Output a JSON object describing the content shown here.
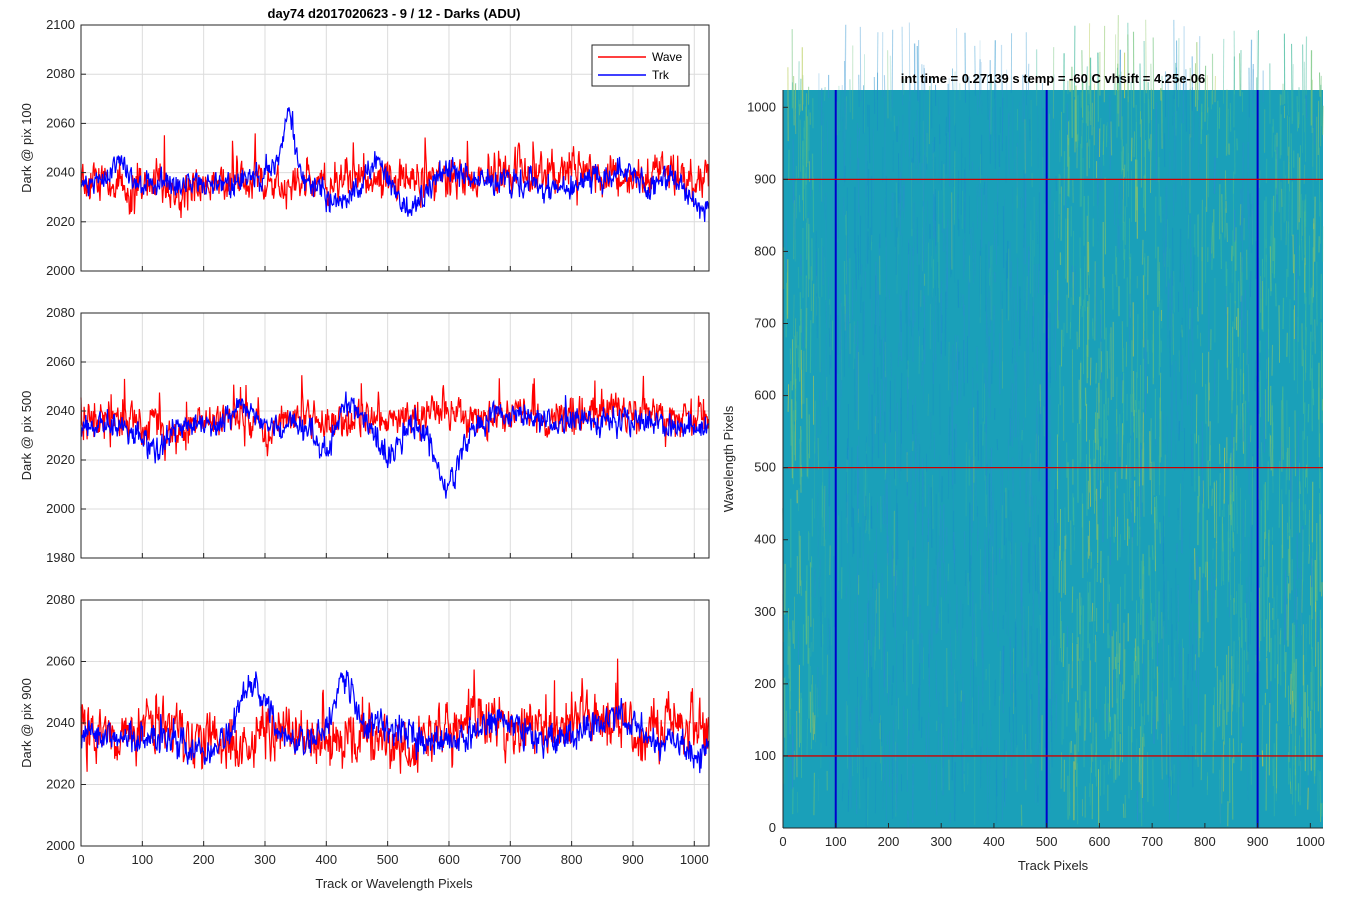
{
  "figure": {
    "xlabel_shared": "Track or Wavelength Pixels"
  },
  "chart_data": [
    {
      "type": "line",
      "title": "day74 d2017020623 - 9 / 12 - Darks (ADU)",
      "ylabel": "Dark @ pix 100",
      "xlabel": "",
      "xlim": [
        0,
        1024
      ],
      "ylim": [
        2000,
        2100
      ],
      "xticks": [
        0,
        100,
        200,
        300,
        400,
        500,
        600,
        700,
        800,
        900,
        1000
      ],
      "yticks": [
        2000,
        2020,
        2040,
        2060,
        2080,
        2100
      ],
      "grid": true,
      "legend": {
        "position": "top-right",
        "entries": [
          "Wave",
          "Trk"
        ]
      },
      "series": [
        {
          "name": "Wave",
          "color": "#ff0000",
          "mean": 2037,
          "noise": 9,
          "spike_rate": 0.05,
          "spike_amp": 28,
          "features": [
            [
              80,
              20,
              -6
            ],
            [
              160,
              30,
              -5
            ],
            [
              330,
              25,
              -4
            ],
            [
              700,
              40,
              4
            ],
            [
              800,
              40,
              5
            ],
            [
              950,
              40,
              3
            ]
          ]
        },
        {
          "name": "Trk",
          "color": "#0000ff",
          "mean": 2036,
          "noise": 6,
          "spike_rate": 0.01,
          "spike_amp": 14,
          "features": [
            [
              60,
              15,
              10
            ],
            [
              340,
              12,
              22
            ],
            [
              320,
              30,
              8
            ],
            [
              420,
              30,
              -8
            ],
            [
              480,
              15,
              8
            ],
            [
              540,
              25,
              -10
            ],
            [
              600,
              30,
              5
            ],
            [
              780,
              40,
              -3
            ],
            [
              880,
              30,
              5
            ],
            [
              1010,
              20,
              -12
            ]
          ]
        }
      ]
    },
    {
      "type": "line",
      "title": "",
      "ylabel": "Dark @ pix 500",
      "xlabel": "",
      "xlim": [
        0,
        1024
      ],
      "ylim": [
        1980,
        2080
      ],
      "xticks": [
        0,
        100,
        200,
        300,
        400,
        500,
        600,
        700,
        800,
        900,
        1000
      ],
      "yticks": [
        1980,
        2000,
        2020,
        2040,
        2060,
        2080
      ],
      "grid": true,
      "series": [
        {
          "name": "Wave",
          "color": "#ff0000",
          "mean": 2036,
          "noise": 8,
          "spike_rate": 0.05,
          "spike_amp": 26,
          "features": [
            [
              150,
              30,
              -5
            ],
            [
              300,
              20,
              -4
            ],
            [
              580,
              20,
              6
            ],
            [
              700,
              40,
              3
            ],
            [
              850,
              50,
              4
            ],
            [
              950,
              40,
              3
            ]
          ]
        },
        {
          "name": "Trk",
          "color": "#0000ff",
          "mean": 2034,
          "noise": 6,
          "spike_rate": 0.01,
          "spike_amp": 12,
          "features": [
            [
              120,
              25,
              -10
            ],
            [
              260,
              20,
              10
            ],
            [
              400,
              20,
              -14
            ],
            [
              430,
              30,
              10
            ],
            [
              500,
              20,
              -12
            ],
            [
              590,
              20,
              -18
            ],
            [
              610,
              25,
              -12
            ],
            [
              700,
              40,
              5
            ],
            [
              800,
              40,
              2
            ],
            [
              900,
              40,
              3
            ]
          ]
        }
      ]
    },
    {
      "type": "line",
      "title": "",
      "ylabel": "Dark @ pix 900",
      "xlabel": "Track or Wavelength Pixels",
      "xlim": [
        0,
        1024
      ],
      "ylim": [
        2000,
        2080
      ],
      "xticks": [
        0,
        100,
        200,
        300,
        400,
        500,
        600,
        700,
        800,
        900,
        1000
      ],
      "yticks": [
        2000,
        2020,
        2040,
        2060,
        2080
      ],
      "grid": true,
      "series": [
        {
          "name": "Wave",
          "color": "#ff0000",
          "mean": 2037,
          "noise": 10,
          "spike_rate": 0.05,
          "spike_amp": 24,
          "features": [
            [
              250,
              40,
              -5
            ],
            [
              400,
              40,
              -4
            ],
            [
              530,
              40,
              -5
            ],
            [
              650,
              40,
              5
            ],
            [
              820,
              60,
              6
            ],
            [
              1000,
              30,
              3
            ]
          ]
        },
        {
          "name": "Trk",
          "color": "#0000ff",
          "mean": 2035,
          "noise": 6,
          "spike_rate": 0.01,
          "spike_amp": 12,
          "features": [
            [
              280,
              30,
              18
            ],
            [
              430,
              25,
              20
            ],
            [
              200,
              30,
              -5
            ],
            [
              500,
              30,
              5
            ],
            [
              680,
              40,
              6
            ],
            [
              870,
              40,
              8
            ],
            [
              1000,
              30,
              -6
            ]
          ]
        }
      ]
    },
    {
      "type": "heatmap",
      "title": "int time = 0.27139 s   temp = -60 C   vhsift = 4.25e-06",
      "xlabel": "Track Pixels",
      "ylabel": "Wavelength Pixels",
      "xlim": [
        0,
        1024
      ],
      "ylim": [
        0,
        1024
      ],
      "xticks": [
        0,
        100,
        200,
        300,
        400,
        500,
        600,
        700,
        800,
        900,
        1000
      ],
      "yticks": [
        0,
        100,
        200,
        300,
        400,
        500,
        600,
        700,
        800,
        900,
        1000
      ],
      "colormap": "parula",
      "base_color": "#1aa0b9",
      "streak_colors": [
        "#3fb89a",
        "#6cc177",
        "#8ec86a",
        "#b4c94e",
        "#2a8fcf",
        "#168ac8"
      ],
      "bright_columns": [
        [
          0,
          60
        ],
        [
          520,
          720
        ],
        [
          780,
          880
        ],
        [
          900,
          1024
        ]
      ],
      "vertical_lines": {
        "x": [
          100,
          500,
          900
        ],
        "color": "#0000cc"
      },
      "horizontal_lines": {
        "y": [
          100,
          500,
          900
        ],
        "color": "#cc0000"
      }
    }
  ]
}
